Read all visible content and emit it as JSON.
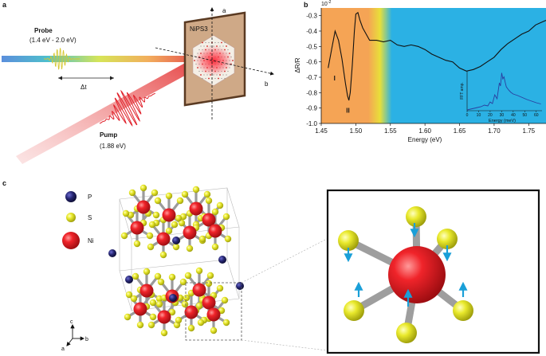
{
  "panels": {
    "a": "a",
    "b": "b",
    "c": "c"
  },
  "panel_a": {
    "probe_title": "Probe",
    "probe_range": "(1.4 eV - 2.0 eV)",
    "delay": "Δt",
    "pump_title": "Pump",
    "pump_energy": "(1.88 eV)",
    "sample": "NiPS3",
    "axis_a": "a",
    "axis_b": "b"
  },
  "chart_data": {
    "type": "line",
    "title": "",
    "exponent": "10",
    "exponent_power": "-2",
    "xlabel": "Energy (eV)",
    "ylabel": "ΔR/R",
    "xlim": [
      1.45,
      1.775
    ],
    "ylim": [
      -1.0,
      -0.25
    ],
    "xticks": [
      "1.45",
      "1.50",
      "1.55",
      "1.60",
      "1.65",
      "1.70",
      "1.75"
    ],
    "yticks": [
      "-0.3",
      "-0.4",
      "-0.5",
      "-0.6",
      "-0.7",
      "-0.8",
      "-0.9",
      "-1.0"
    ],
    "peak_labels": [
      "I",
      "II"
    ],
    "background_regions": [
      {
        "x0": 1.45,
        "x1": 1.52,
        "color": "#f5a455"
      },
      {
        "x0": 1.52,
        "x1": 1.55,
        "color": "#e8df3a"
      },
      {
        "x0": 1.55,
        "x1": 1.775,
        "color": "#2bb1e4"
      }
    ],
    "series": [
      {
        "color": "#111111",
        "x": [
          1.46,
          1.465,
          1.47,
          1.475,
          1.48,
          1.485,
          1.488,
          1.49,
          1.492,
          1.495,
          1.498,
          1.5,
          1.503,
          1.506,
          1.51,
          1.515,
          1.52,
          1.53,
          1.54,
          1.55,
          1.56,
          1.57,
          1.58,
          1.59,
          1.6,
          1.61,
          1.62,
          1.63,
          1.64,
          1.65,
          1.66,
          1.67,
          1.68,
          1.69,
          1.7,
          1.71,
          1.72,
          1.73,
          1.74,
          1.75,
          1.76,
          1.77,
          1.775
        ],
        "y": [
          -0.64,
          -0.52,
          -0.4,
          -0.46,
          -0.58,
          -0.74,
          -0.82,
          -0.85,
          -0.8,
          -0.62,
          -0.4,
          -0.29,
          -0.28,
          -0.33,
          -0.38,
          -0.42,
          -0.46,
          -0.46,
          -0.47,
          -0.46,
          -0.49,
          -0.5,
          -0.49,
          -0.5,
          -0.52,
          -0.55,
          -0.57,
          -0.59,
          -0.6,
          -0.64,
          -0.66,
          -0.65,
          -0.63,
          -0.6,
          -0.57,
          -0.52,
          -0.48,
          -0.45,
          -0.42,
          -0.4,
          -0.36,
          -0.34,
          -0.33
        ]
      }
    ],
    "inset": {
      "xlabel": "Energy (meV)",
      "ylabel": "FFT amp.",
      "xticks": [
        "0",
        "10",
        "20",
        "30",
        "40",
        "50",
        "60"
      ],
      "xlim": [
        0,
        65
      ],
      "color": "#2a3fa0",
      "x": [
        0,
        3,
        6,
        9,
        12,
        15,
        18,
        20,
        22,
        24,
        26,
        28,
        29,
        30,
        31,
        32,
        33,
        34,
        36,
        38,
        40,
        44,
        48,
        52,
        56,
        60,
        64
      ],
      "y": [
        0.02,
        0.04,
        0.06,
        0.08,
        0.1,
        0.14,
        0.12,
        0.22,
        0.18,
        0.4,
        0.3,
        0.7,
        0.62,
        0.95,
        0.8,
        0.85,
        0.72,
        0.6,
        0.52,
        0.46,
        0.42,
        0.38,
        0.33,
        0.28,
        0.24,
        0.2,
        0.17
      ]
    }
  },
  "panel_c": {
    "legend": [
      {
        "label": "P",
        "color": "#22226e"
      },
      {
        "label": "S",
        "color": "#e8e82a"
      },
      {
        "label": "Ni",
        "color": "#e01e22"
      }
    ],
    "axes": {
      "c": "c",
      "a": "a",
      "b": "b"
    }
  }
}
